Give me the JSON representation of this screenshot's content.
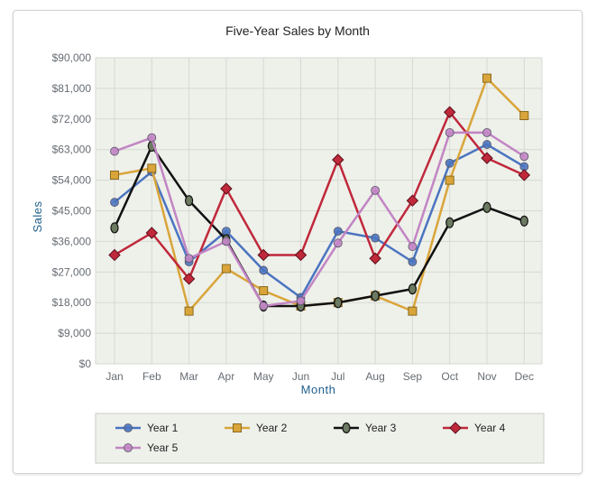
{
  "chart_data": {
    "type": "line",
    "title": "Five-Year Sales by Month",
    "xlabel": "Month",
    "ylabel": "Sales",
    "categories": [
      "Jan",
      "Feb",
      "Mar",
      "Apr",
      "May",
      "Jun",
      "Jul",
      "Aug",
      "Sep",
      "Oct",
      "Nov",
      "Dec"
    ],
    "ylim": [
      0,
      90000
    ],
    "yticks": [
      0,
      9000,
      18000,
      27000,
      36000,
      45000,
      54000,
      63000,
      72000,
      81000,
      90000
    ],
    "ytick_labels": [
      "$0",
      "$9,000",
      "$18,000",
      "$27,000",
      "$36,000",
      "$45,000",
      "$54,000",
      "$63,000",
      "$72,000",
      "$81,000",
      "$90,000"
    ],
    "grid": true,
    "legend_position": "bottom",
    "series": [
      {
        "name": "Year 1",
        "color": "#4a74c0",
        "marker": "circle",
        "values": [
          47500,
          56500,
          30000,
          39000,
          27500,
          19500,
          39000,
          37000,
          30000,
          59000,
          64500,
          58000
        ]
      },
      {
        "name": "Year 2",
        "color": "#d9a53a",
        "marker": "square",
        "values": [
          55500,
          57500,
          15500,
          28000,
          21500,
          17000,
          18000,
          20000,
          15500,
          54000,
          84000,
          73000
        ]
      },
      {
        "name": "Year 3",
        "color": "#111111",
        "marker": "ellipse",
        "values": [
          40000,
          64000,
          48000,
          36500,
          17000,
          17000,
          18000,
          20000,
          22000,
          41500,
          46000,
          42000
        ]
      },
      {
        "name": "Year 4",
        "color": "#c0283b",
        "marker": "diamond",
        "values": [
          32000,
          38500,
          25000,
          51500,
          32000,
          32000,
          60000,
          31000,
          48000,
          74000,
          60500,
          55500
        ]
      },
      {
        "name": "Year 5",
        "color": "#c285c4",
        "marker": "circle",
        "values": [
          62500,
          66500,
          31000,
          36000,
          17000,
          18500,
          35500,
          51000,
          34500,
          68000,
          68000,
          61000
        ]
      }
    ]
  }
}
